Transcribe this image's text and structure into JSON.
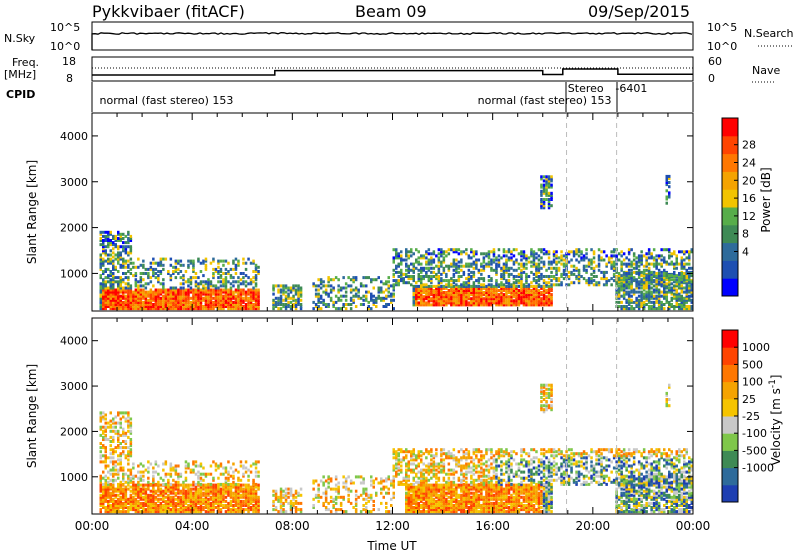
{
  "header": {
    "station": "Pykkvibaer (fitACF)",
    "beam": "Beam 09",
    "date": "09/Sep/2015"
  },
  "aux_panels": {
    "nsky_label": "N.Sky",
    "nsearch_label": "N.Search",
    "noise_ticks_left": [
      "10^5",
      "10^0"
    ],
    "noise_ticks_right": [
      "10^5",
      "10^0"
    ],
    "freq_label_1": "Freq.",
    "freq_label_2": "[MHz]",
    "freq_ticks": [
      "18",
      "8"
    ],
    "nave_label": "Nave",
    "nave_ticks": [
      "60",
      "0"
    ],
    "cpid_label": "CPID",
    "cpid_texts": [
      {
        "text": "normal (fast stereo) 153",
        "x_hour": 0.3
      },
      {
        "text": "normal (fast stereo) 153",
        "x_hour": 15.4
      },
      {
        "text": "Stereo",
        "x_hour": 19.0
      },
      {
        "text": "-6401",
        "x_hour": 20.9
      }
    ],
    "freq_steps": [
      {
        "x_hour": 0.0,
        "mhz": 10.5
      },
      {
        "x_hour": 7.3,
        "mhz": 12.3
      },
      {
        "x_hour": 18.0,
        "mhz": 10.7
      },
      {
        "x_hour": 18.8,
        "mhz": 13.0
      },
      {
        "x_hour": 21.0,
        "mhz": 10.8
      },
      {
        "x_hour": 24.0,
        "mhz": 10.8
      }
    ]
  },
  "chart_data": [
    {
      "type": "heatmap",
      "name": "power",
      "xlabel": "",
      "ylabel": "Slant Range [km]",
      "ylim": [
        180,
        4500
      ],
      "xlim": [
        0,
        24
      ],
      "y_ticks": [
        1000,
        2000,
        3000,
        4000
      ],
      "x_ticks": [
        0,
        4,
        8,
        12,
        16,
        20,
        24
      ],
      "colorbar": {
        "label": "Power [dB]",
        "tick_labels": [
          "28",
          "24",
          "20",
          "16",
          "12",
          "8",
          "4"
        ],
        "colors": [
          "#0000ff",
          "#1e4fb2",
          "#2e6b9b",
          "#3e8a55",
          "#57ad4a",
          "#f2c400",
          "#f5a300",
          "#ff7700",
          "#ff4400",
          "#ff0000"
        ]
      },
      "dashed_vlines_hours": [
        18.95,
        20.95
      ],
      "description_blobs": [
        {
          "t0": 0.3,
          "t1": 6.5,
          "r0": 200,
          "r1": 600,
          "level": "high"
        },
        {
          "t0": 0.3,
          "t1": 1.8,
          "r0": 600,
          "r1": 1900,
          "level": "mixed"
        },
        {
          "t0": 12.8,
          "t1": 18.0,
          "r0": 300,
          "r1": 800,
          "level": "high"
        },
        {
          "t0": 14.0,
          "t1": 24.0,
          "r0": 700,
          "r1": 1500,
          "level": "low"
        }
      ]
    },
    {
      "type": "heatmap",
      "name": "velocity",
      "xlabel": "Time UT",
      "ylabel": "Slant Range [km]",
      "ylim": [
        180,
        4500
      ],
      "xlim": [
        0,
        24
      ],
      "y_ticks": [
        1000,
        2000,
        3000,
        4000
      ],
      "x_ticks": [
        0,
        4,
        8,
        12,
        16,
        20,
        24
      ],
      "x_tick_labels": [
        "00:00",
        "04:00",
        "08:00",
        "12:00",
        "16:00",
        "20:00",
        "00:00"
      ],
      "colorbar": {
        "label": "Velocity [m s^-1]",
        "tick_labels": [
          "1000",
          "500",
          "100",
          "25",
          "-25",
          "-100",
          "-500",
          "-1000"
        ],
        "colors": [
          "#1e3fb2",
          "#2e6b9b",
          "#3e8a55",
          "#7fc74a",
          "#c8c8c8",
          "#f5c400",
          "#f5a300",
          "#ff7700",
          "#ff4400",
          "#ff0000"
        ]
      },
      "dashed_vlines_hours": [
        18.95,
        20.95
      ]
    }
  ]
}
